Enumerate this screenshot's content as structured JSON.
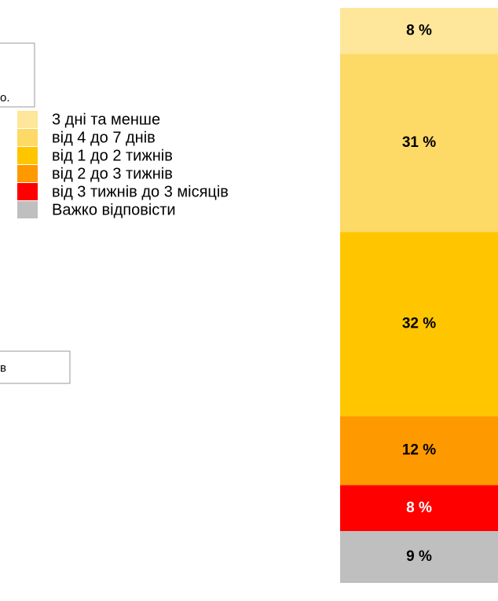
{
  "chart_data": {
    "type": "stacked_bar",
    "stack_direction": "top-down",
    "annotations": [
      "о.",
      "в"
    ],
    "ylim": [
      0,
      100
    ],
    "series": [
      {
        "name": "3 дні та менше",
        "color": "#fee69a",
        "values": [
          8
        ],
        "value_labels": [
          "8 %"
        ]
      },
      {
        "name": "від 4 до 7 днів",
        "color": "#fdd966",
        "values": [
          31
        ],
        "value_labels": [
          "31 %"
        ]
      },
      {
        "name": "від 1 до 2 тижнів",
        "color": "#ffc600",
        "values": [
          32
        ],
        "value_labels": [
          "32 %"
        ]
      },
      {
        "name": "від 2 до 3 тижнів",
        "color": "#ff9900",
        "values": [
          12
        ],
        "value_labels": [
          "12 %"
        ]
      },
      {
        "name": "від 3 тижнів до 3 місяців",
        "color": "#ff0000",
        "values": [
          8
        ],
        "value_labels": [
          "8 %"
        ]
      },
      {
        "name": "Важко відповісти",
        "color": "#bfbfbf",
        "values": [
          9
        ],
        "value_labels": [
          "9 %"
        ]
      }
    ]
  }
}
